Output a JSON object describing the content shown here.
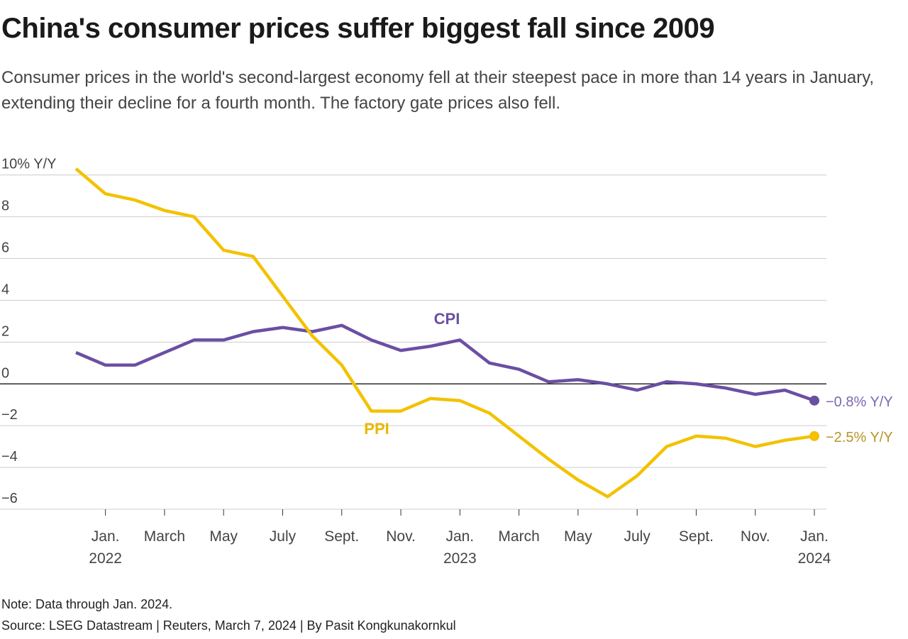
{
  "chart_data": {
    "type": "line",
    "title": "China's consumer prices suffer biggest fall since 2009",
    "subtitle": "Consumer prices in the world's second-largest economy fell at their steepest pace in more than 14 years in January, extending their decline for a fourth month. The factory gate prices also fell.",
    "note": "Note: Data through Jan. 2024.",
    "source": "Source: LSEG Datastream | Reuters, March 7, 2024 | By Pasit Kongkunakornkul",
    "categories": [
      null,
      "Jan.\n2022",
      null,
      "March",
      null,
      "May",
      null,
      "July",
      null,
      "Sept.",
      null,
      "Nov.",
      null,
      "Jan.\n2023",
      null,
      "March",
      null,
      "May",
      null,
      "July",
      null,
      "Sept.",
      null,
      "Nov.",
      null,
      "Jan.\n2024"
    ],
    "series": [
      {
        "name": "CPI",
        "color": "#6a4fa3",
        "end_label": "−0.8% Y/Y",
        "values": [
          1.5,
          0.9,
          0.9,
          1.5,
          2.1,
          2.1,
          2.5,
          2.7,
          2.5,
          2.8,
          2.1,
          1.6,
          1.8,
          2.1,
          1.0,
          0.7,
          0.1,
          0.2,
          0.0,
          -0.3,
          0.1,
          0.0,
          -0.2,
          -0.5,
          -0.3,
          -0.8
        ]
      },
      {
        "name": "PPI",
        "color": "#f2c200",
        "end_label": "−2.5% Y/Y",
        "values": [
          10.3,
          9.1,
          8.8,
          8.3,
          8.0,
          6.4,
          6.1,
          4.2,
          2.3,
          0.9,
          -1.3,
          -1.3,
          -0.7,
          -0.8,
          -1.4,
          -2.5,
          -3.6,
          -4.6,
          -5.4,
          -4.4,
          -3.0,
          -2.5,
          -2.6,
          -3.0,
          -2.7,
          -2.5
        ]
      }
    ],
    "ylim": [
      -6,
      10.5
    ],
    "yticks": [
      {
        "value": -6,
        "label": "−6"
      },
      {
        "value": -4,
        "label": "−4"
      },
      {
        "value": -2,
        "label": "−2"
      },
      0,
      2,
      4,
      6,
      8,
      {
        "value": 10,
        "label": "10% Y/Y"
      }
    ],
    "grid": true
  }
}
